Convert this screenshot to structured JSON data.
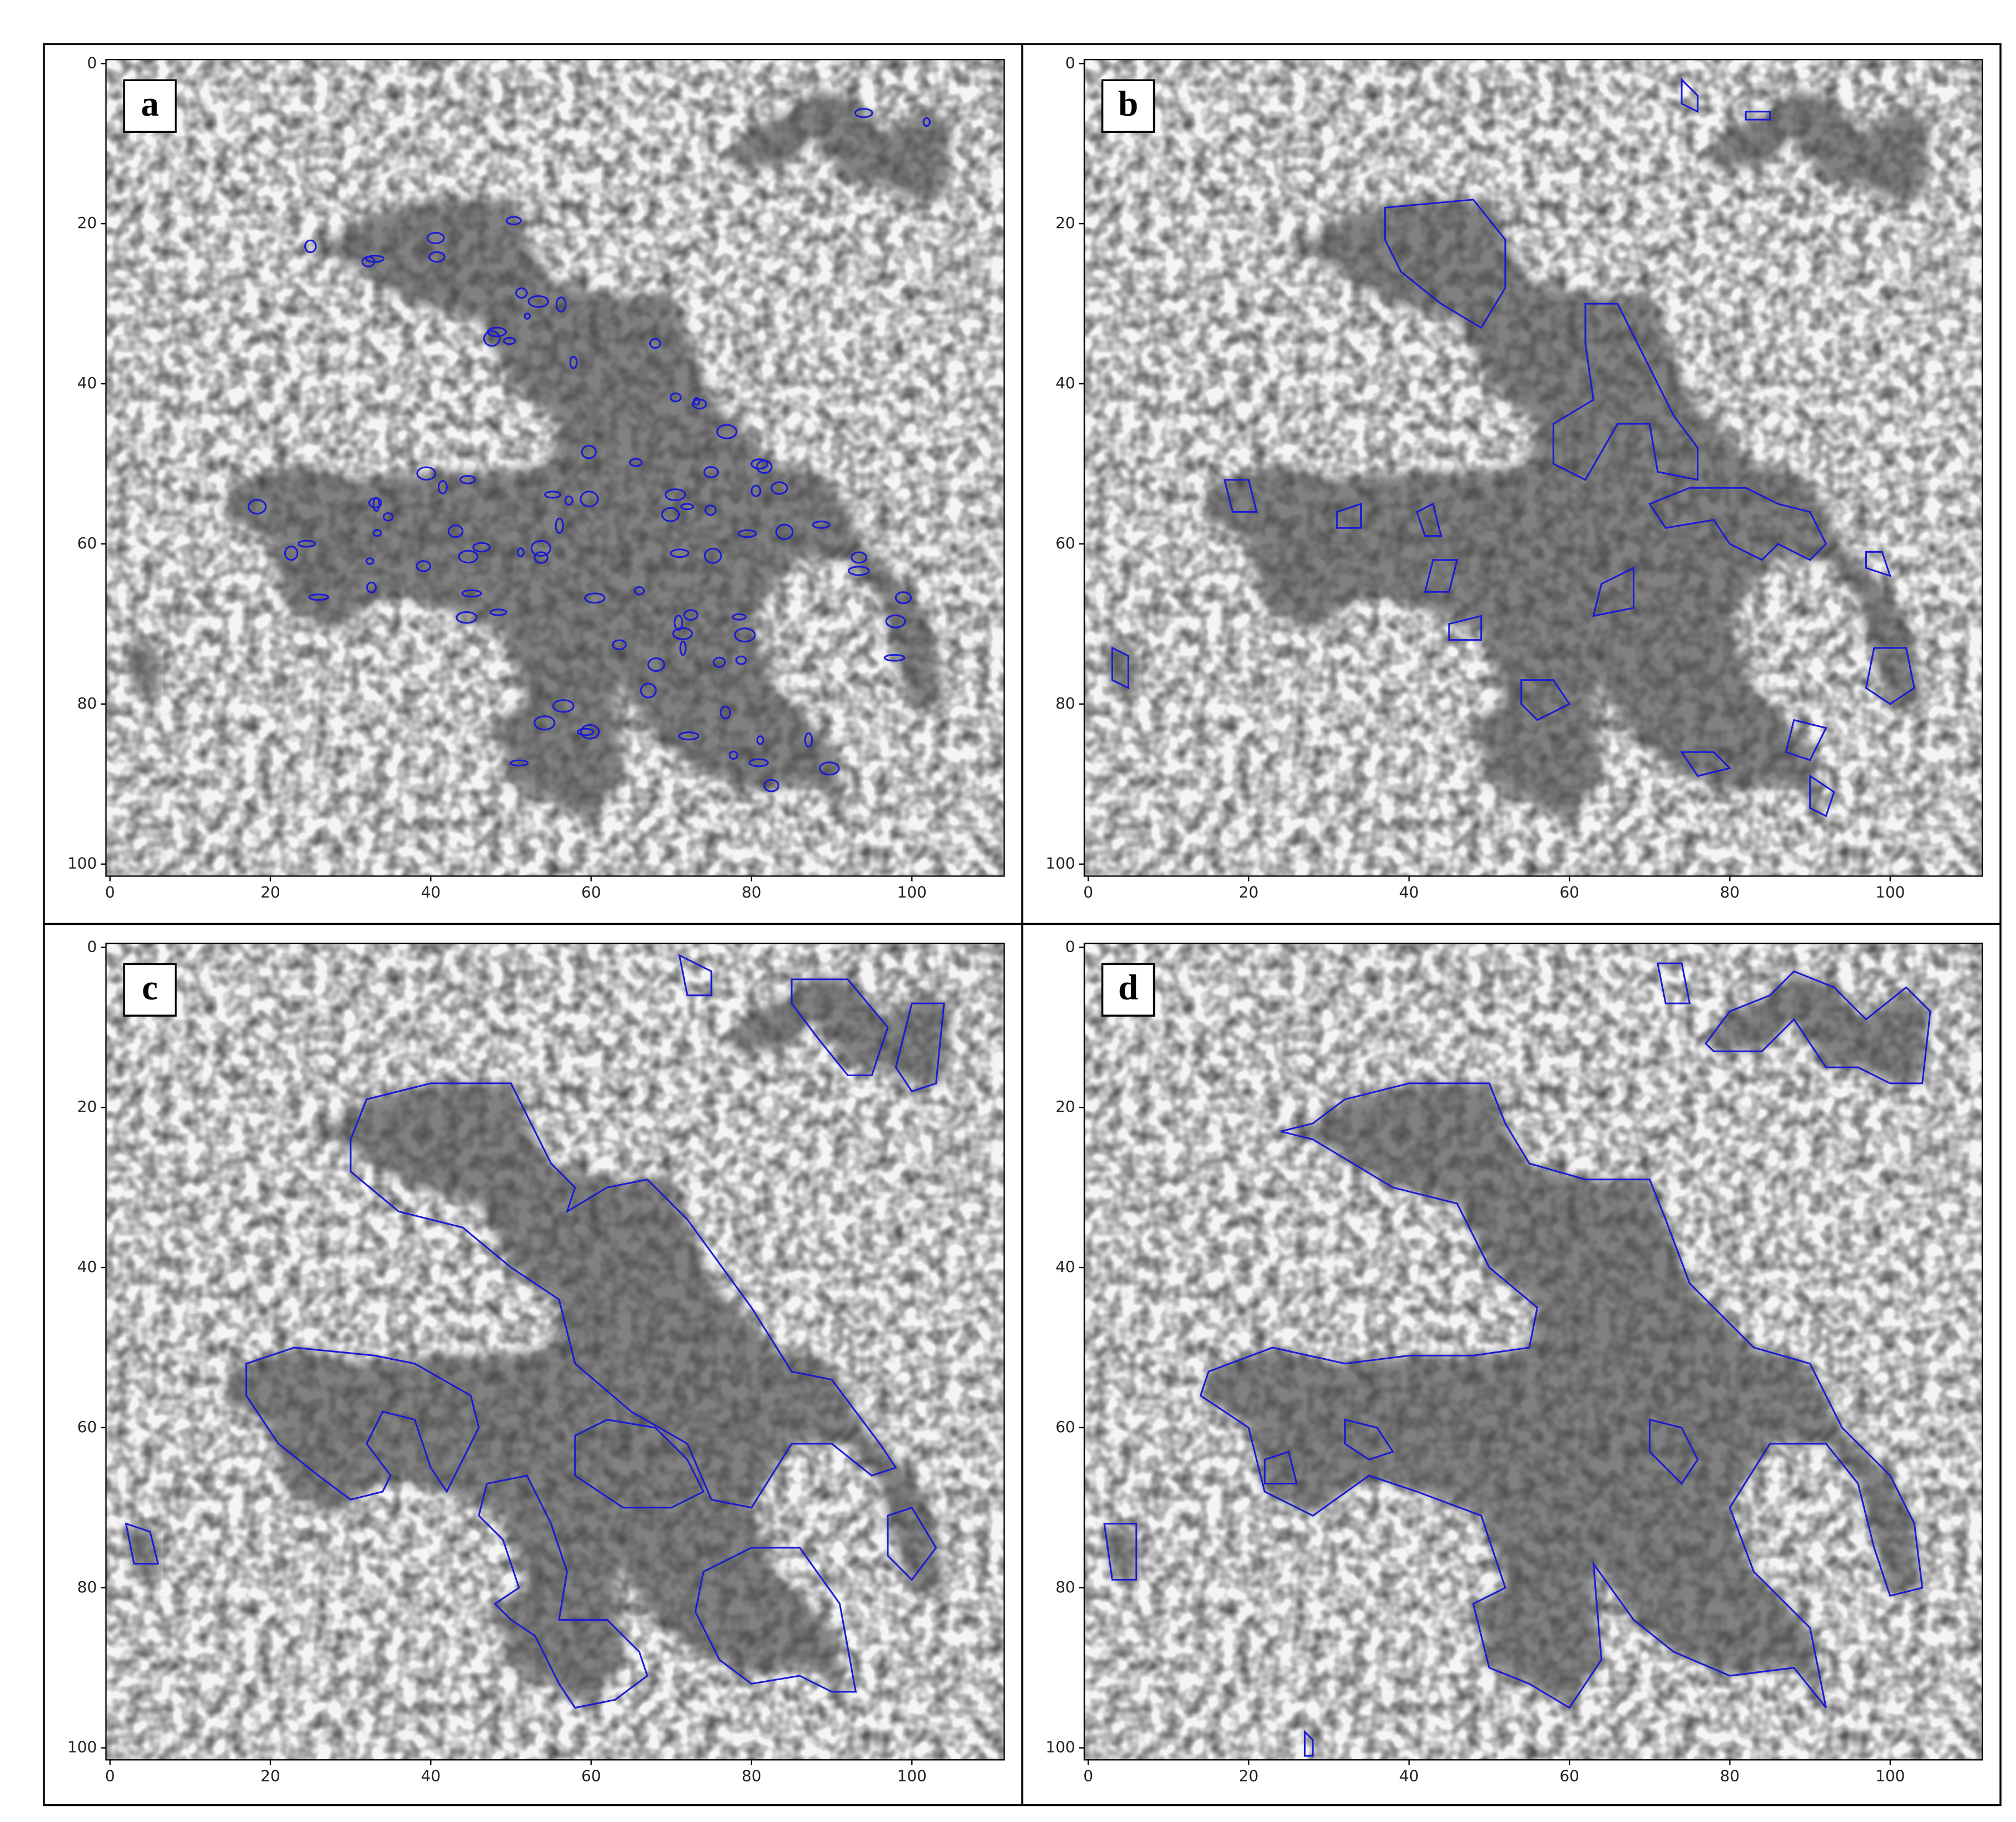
{
  "chart_data": [
    {
      "type": "image",
      "panel_label": "a",
      "xlim": [
        -0.5,
        111.5
      ],
      "ylim": [
        101.5,
        -0.5
      ],
      "xticks": [
        0,
        20,
        40,
        60,
        80,
        100
      ],
      "yticks": [
        0,
        20,
        40,
        60,
        80,
        100
      ]
    },
    {
      "type": "image",
      "panel_label": "b",
      "xlim": [
        -0.5,
        111.5
      ],
      "ylim": [
        101.5,
        -0.5
      ],
      "xticks": [
        0,
        20,
        40,
        60,
        80,
        100
      ],
      "yticks": [
        0,
        20,
        40,
        60,
        80,
        100
      ]
    },
    {
      "type": "image",
      "panel_label": "c",
      "xlim": [
        -0.5,
        111.5
      ],
      "ylim": [
        101.5,
        -0.5
      ],
      "xticks": [
        0,
        20,
        40,
        60,
        80,
        100
      ],
      "yticks": [
        0,
        20,
        40,
        60,
        80,
        100
      ]
    },
    {
      "type": "image",
      "panel_label": "d",
      "xlim": [
        -0.5,
        111.5
      ],
      "ylim": [
        101.5,
        -0.5
      ],
      "xticks": [
        0,
        20,
        40,
        60,
        80,
        100
      ],
      "yticks": [
        0,
        20,
        40,
        60,
        80,
        100
      ]
    }
  ]
}
